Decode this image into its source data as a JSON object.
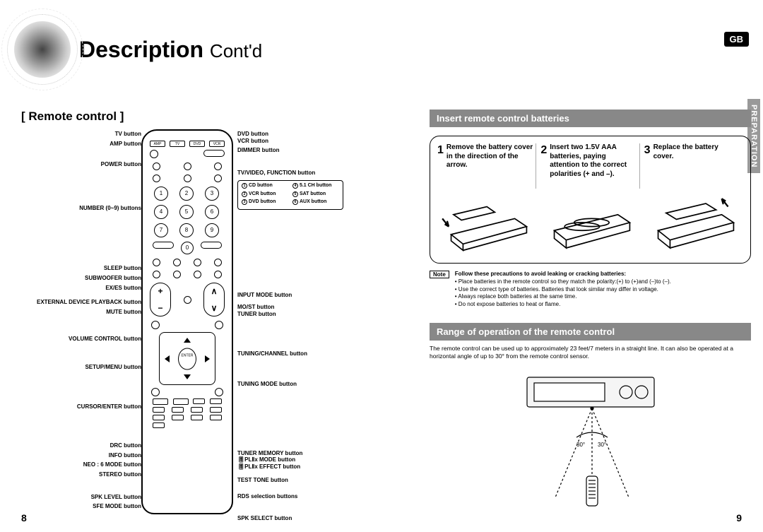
{
  "lang_badge": "GB",
  "side_tab": "PREPARATION",
  "page_title": "Description",
  "page_title_contd": "Cont'd",
  "left_section_title": "[ Remote control ]",
  "left_labels": [
    "TV button",
    "AMP button",
    "POWER button",
    "NUMBER (0~9) buttons",
    "SLEEP button",
    "SUBWOOFER button",
    "EX/ES button",
    "EXTERNAL DEVICE PLAYBACK button",
    "MUTE button",
    "VOLUME CONTROL button",
    "SETUP/MENU button",
    "CURSOR/ENTER button",
    "DRC button",
    "INFO button",
    "NEO : 6 MODE button",
    "STEREO button",
    "SPK LEVEL button",
    "SFE MODE button"
  ],
  "left_label_offsets": [
    2,
    0,
    20,
    52,
    76,
    0,
    0,
    11,
    0,
    29,
    30,
    46,
    46,
    0,
    0,
    0,
    22,
    0
  ],
  "right_labels": [
    "DVD button",
    "VCR button",
    "DIMMER button",
    "TV/VIDEO, FUNCTION button",
    "INPUT MODE button",
    "MO/ST button",
    "TUNER button",
    "TUNING/CHANNEL button",
    "TUNING MODE button",
    "TUNER MEMORY button",
    "🎚PLⅡx MODE button",
    "🎚PLⅡx EFFECT button",
    "TEST TONE button",
    "RDS selection buttons",
    "SPK SELECT button"
  ],
  "right_label_offsets": [
    2,
    0,
    4,
    22,
    116,
    8,
    0,
    47,
    33,
    88,
    0,
    0,
    10,
    13,
    22
  ],
  "callout_items": [
    {
      "n": "1",
      "t": "CD button"
    },
    {
      "n": "4",
      "t": "5.1 CH button"
    },
    {
      "n": "2",
      "t": "VCR button"
    },
    {
      "n": "5",
      "t": "SAT button"
    },
    {
      "n": "3",
      "t": "DVD button"
    },
    {
      "n": "6",
      "t": "AUX button"
    }
  ],
  "top_remote_btns": [
    "AMP",
    "TV",
    "DVD",
    "VCR"
  ],
  "num_buttons": [
    "1",
    "2",
    "3",
    "4",
    "5",
    "6",
    "7",
    "8",
    "9"
  ],
  "num_zero": "0",
  "vol_plus": "+",
  "vol_minus": "−",
  "enter_label": "ENTER",
  "insert_header": "Insert remote control batteries",
  "steps": [
    {
      "n": "1",
      "t": "Remove the battery cover in the direction of the arrow."
    },
    {
      "n": "2",
      "t": "Insert two 1.5V AAA batteries, paying attention to the correct polarities (+ and –)."
    },
    {
      "n": "3",
      "t": "Replace the battery cover."
    }
  ],
  "note_label": "Note",
  "note_lead": "Follow these precautions to avoid leaking or cracking batteries:",
  "note_bullets": [
    "Place batteries in the remote control so they match the polarity:(+) to (+)and (–)to (–).",
    "Use the correct type of batteries. Batteries that look similar may differ in voltage.",
    "Always replace both batteries at the same time.",
    "Do not expose batteries to heat or flame."
  ],
  "range_header": "Range of operation of the remote control",
  "range_desc": "The remote control can be used up to approximately 23 feet/7 meters in a straight line. It can also be operated at a horizontal angle of up to 30° from the remote control sensor.",
  "page_left": "8",
  "page_right": "9",
  "colors": {
    "hdr_bg": "#888888",
    "badge_bg": "#000000"
  }
}
